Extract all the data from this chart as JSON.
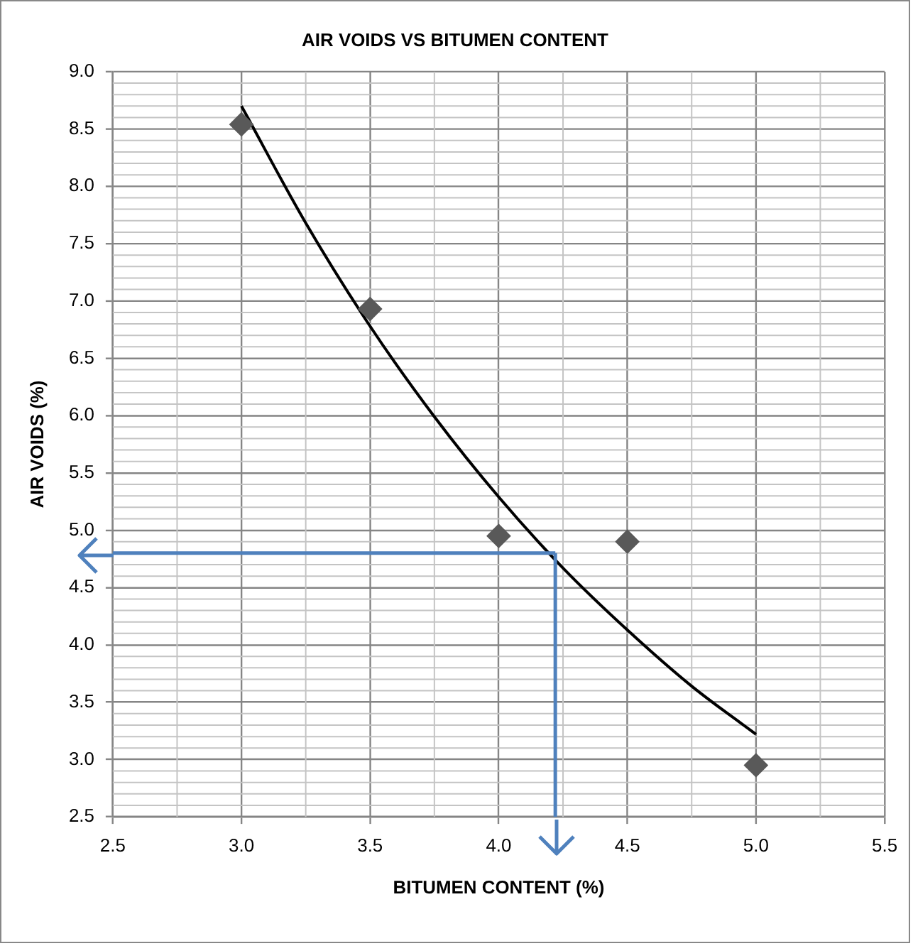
{
  "chart_data": {
    "type": "scatter",
    "title": "AIR VOIDS VS BITUMEN CONTENT",
    "xlabel": "BITUMEN CONTENT (%)",
    "ylabel": "AIR VOIDS (%)",
    "xlim": [
      2.5,
      5.5
    ],
    "xticks": [
      2.5,
      {
        "value": 3,
        "label": "3.0"
      },
      3.5,
      {
        "value": 4,
        "label": "4.0"
      },
      4.5,
      {
        "value": 5,
        "label": "5.0"
      },
      5.5
    ],
    "ylim": [
      2.5,
      9
    ],
    "yticks": [
      2.5,
      {
        "value": 3,
        "label": "3.0"
      },
      3.5,
      {
        "value": 4,
        "label": "4.0"
      },
      4.5,
      {
        "value": 5,
        "label": "5.0"
      },
      5.5,
      {
        "value": 6,
        "label": "6.0"
      },
      6.5,
      {
        "value": 7,
        "label": "7.0"
      },
      7.5,
      {
        "value": 8,
        "label": "8.0"
      },
      8.5,
      {
        "value": 9,
        "label": "9.0"
      }
    ],
    "grid": true,
    "series": [
      {
        "type": "scatter",
        "color": "#595959",
        "marker": "diamond",
        "x": [
          3,
          3.5,
          4,
          4.5,
          5
        ],
        "values": [
          8.54,
          6.93,
          4.95,
          4.9,
          2.95
        ]
      },
      {
        "type": "line",
        "color": "#000000",
        "marker": "none",
        "x": [
          3,
          3.25,
          3.5,
          3.75,
          4,
          4.25,
          4.5,
          4.75,
          5
        ],
        "values": [
          8.7,
          7.68,
          6.78,
          5.99,
          5.29,
          4.67,
          4.13,
          3.64,
          3.22
        ]
      }
    ],
    "ref_lines": [
      {
        "axis": "y",
        "value": 4.8,
        "color": "#4f81bd"
      },
      {
        "axis": "x",
        "value": 4.22,
        "color": "#4f81bd"
      }
    ]
  }
}
